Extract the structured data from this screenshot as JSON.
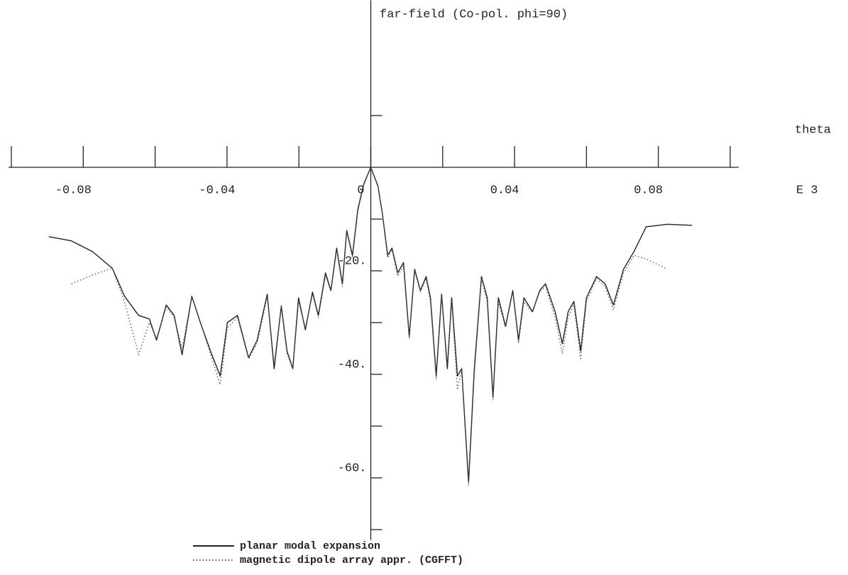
{
  "chart_data": {
    "type": "line",
    "title": "far-field (Co-pol. phi=90)",
    "x_label": "theta",
    "x_multiplier": "E 3",
    "xlim": [
      -0.1,
      0.1
    ],
    "xticks": [
      -0.08,
      -0.04,
      0,
      0.04,
      0.08
    ],
    "xminorticks": [
      -0.1,
      -0.06,
      -0.02,
      0.02,
      0.06,
      0.1
    ],
    "ylim": [
      -72,
      32
    ],
    "yticks": [
      {
        "value": -20,
        "label": "-20."
      },
      {
        "value": -40,
        "label": "-40."
      },
      {
        "value": -60,
        "label": "-60."
      }
    ],
    "yminorticks": [
      10,
      -10,
      -30,
      -50,
      -70
    ],
    "x": [
      -0.0896,
      -0.0833,
      -0.0774,
      -0.0719,
      -0.0685,
      -0.0646,
      -0.0616,
      -0.0596,
      -0.0569,
      -0.0547,
      -0.0525,
      -0.0498,
      -0.0474,
      -0.0446,
      -0.0419,
      -0.0399,
      -0.0371,
      -0.034,
      -0.0316,
      -0.0288,
      -0.0269,
      -0.0249,
      -0.0233,
      -0.0217,
      -0.0201,
      -0.0182,
      -0.0162,
      -0.0146,
      -0.0126,
      -0.0111,
      -0.0095,
      -0.0079,
      -0.0067,
      -0.0051,
      -0.0036,
      -0.002,
      0,
      0.002,
      0.0032,
      0.0047,
      0.0059,
      0.0075,
      0.0091,
      0.0107,
      0.0122,
      0.0138,
      0.0154,
      0.0166,
      0.0182,
      0.0197,
      0.0213,
      0.0225,
      0.0241,
      0.0253,
      0.0272,
      0.0288,
      0.0308,
      0.0324,
      0.034,
      0.0355,
      0.0375,
      0.0395,
      0.0411,
      0.0426,
      0.045,
      0.047,
      0.0486,
      0.0513,
      0.0533,
      0.0549,
      0.0565,
      0.0584,
      0.06,
      0.0628,
      0.0652,
      0.0675,
      0.0703,
      0.0732,
      0.0766,
      0.0825,
      0.0894
    ],
    "series": [
      {
        "name": "planar modal expansion",
        "color": "#222222",
        "dash": "solid",
        "values": [
          -13.4,
          -14.2,
          -16.3,
          -19.5,
          -24.9,
          -28.6,
          -29.3,
          -33.4,
          -26.6,
          -28.6,
          -36.2,
          -24.9,
          -30.0,
          -35.5,
          -40.3,
          -30.0,
          -28.6,
          -36.8,
          -33.4,
          -24.5,
          -38.9,
          -26.8,
          -35.5,
          -38.9,
          -25.2,
          -31.4,
          -24.1,
          -28.6,
          -20.4,
          -23.8,
          -15.6,
          -22.5,
          -12.2,
          -17.0,
          -8.1,
          -3.3,
          0,
          -3.6,
          -8.8,
          -17.0,
          -15.6,
          -20.4,
          -18.4,
          -32.7,
          -19.7,
          -23.8,
          -21.1,
          -25.2,
          -40.3,
          -24.5,
          -38.9,
          -25.2,
          -40.3,
          -38.9,
          -60.8,
          -38.9,
          -21.1,
          -25.2,
          -44.4,
          -25.2,
          -30.7,
          -23.8,
          -33.4,
          -25.2,
          -27.9,
          -23.8,
          -22.5,
          -27.9,
          -34.1,
          -27.9,
          -25.9,
          -35.5,
          -25.2,
          -21.1,
          -22.5,
          -26.6,
          -19.7,
          -16.3,
          -11.5,
          -11.0,
          -11.2
        ]
      },
      {
        "name": "magnetic dipole array appr. (CGFFT)",
        "color": "#555555",
        "dash": "dotted",
        "values": [
          null,
          -22.5,
          -20.8,
          -19.5,
          -26,
          -36.2,
          -30,
          -33,
          -27,
          -29,
          -35,
          -25,
          -30,
          -36,
          -42,
          -31,
          -29,
          -37,
          -34,
          -25,
          -38,
          -27,
          -36,
          -39,
          -26,
          -31,
          -24.5,
          -29,
          -21,
          -24,
          -16,
          -23,
          -12.5,
          -17.5,
          -8.5,
          -3.5,
          0,
          -3.8,
          -9,
          -17.5,
          -16,
          -21,
          -19,
          -33,
          -20,
          -24,
          -21.5,
          -26,
          -41,
          -25,
          -38,
          -26,
          -43,
          -39,
          -61.5,
          -40,
          -21.5,
          -26,
          -45,
          -26,
          -31,
          -24,
          -34,
          -26,
          -28,
          -24,
          -23,
          -29,
          -36,
          -29,
          -26.5,
          -37,
          -26,
          -21.5,
          -23,
          -27.5,
          -20.5,
          -17,
          -17.7,
          -19.7,
          null
        ]
      }
    ]
  }
}
